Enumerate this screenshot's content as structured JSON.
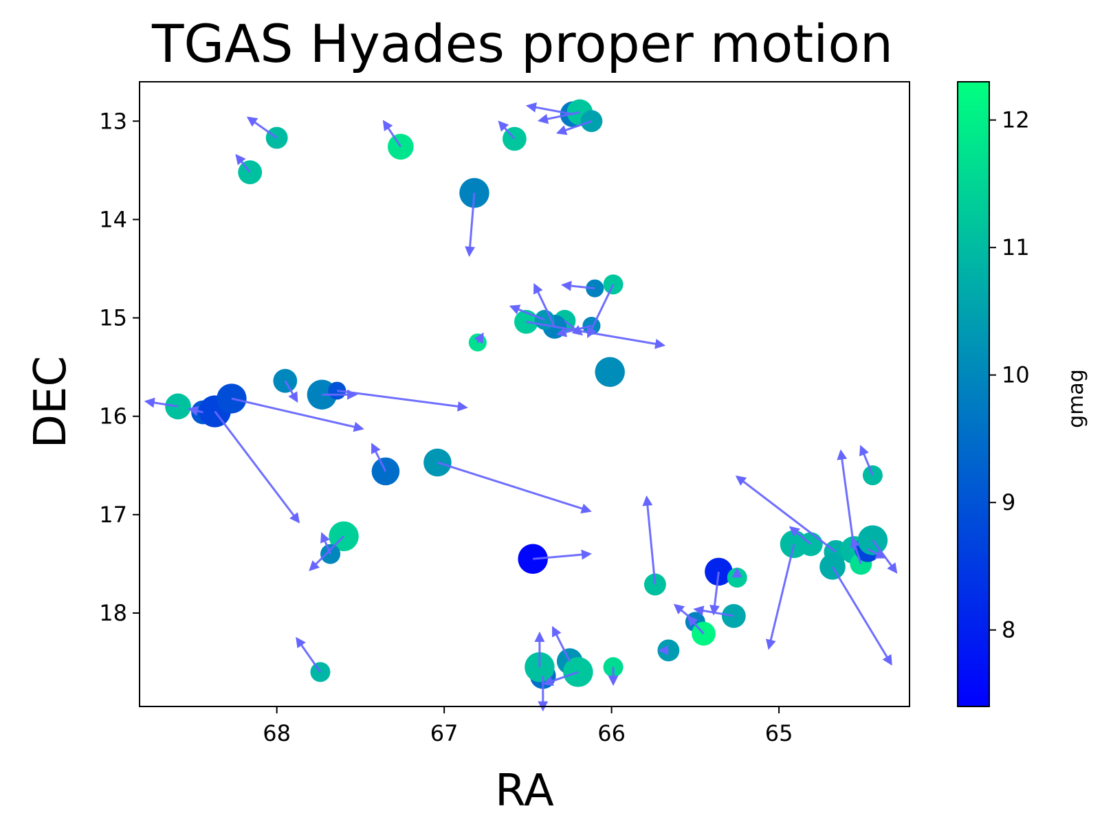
{
  "chart_data": {
    "type": "scatter",
    "title": "TGAS Hyades proper motion",
    "xlabel": "RA",
    "ylabel": "DEC",
    "xlim": [
      68.82,
      64.22
    ],
    "ylim": [
      18.95,
      12.6
    ],
    "x_ticks": [
      68,
      67,
      66,
      65
    ],
    "y_ticks": [
      13,
      14,
      15,
      16,
      17,
      18
    ],
    "grid": false,
    "colorbar": {
      "label": "gmag",
      "range": [
        7.4,
        12.3
      ],
      "ticks": [
        8,
        9,
        10,
        11,
        12
      ],
      "colormap": [
        "#0000ff",
        "#00ff80"
      ]
    },
    "arrow_color": "#6666ff",
    "points": [
      {
        "ra": 68.0,
        "dec": 13.17,
        "gmag": 11.0,
        "pm_dra": 0.17,
        "pm_ddec": -0.12,
        "size": 11
      },
      {
        "ra": 68.16,
        "dec": 13.52,
        "gmag": 11.1,
        "pm_dra": 0.08,
        "pm_ddec": -0.1,
        "size": 12
      },
      {
        "ra": 67.26,
        "dec": 13.26,
        "gmag": 11.8,
        "pm_dra": 0.1,
        "pm_ddec": -0.15,
        "size": 13
      },
      {
        "ra": 66.58,
        "dec": 13.18,
        "gmag": 11.2,
        "pm_dra": 0.09,
        "pm_ddec": -0.1,
        "size": 12
      },
      {
        "ra": 66.23,
        "dec": 12.93,
        "gmag": 9.7,
        "pm_dra": 0.27,
        "pm_ddec": -0.05,
        "size": 13
      },
      {
        "ra": 66.19,
        "dec": 12.91,
        "gmag": 11.2,
        "pm_dra": 0.24,
        "pm_ddec": 0.05,
        "size": 13
      },
      {
        "ra": 66.12,
        "dec": 13.0,
        "gmag": 10.5,
        "pm_dra": 0.2,
        "pm_ddec": 0.07,
        "size": 11
      },
      {
        "ra": 66.82,
        "dec": 13.73,
        "gmag": 9.9,
        "pm_dra": 0.03,
        "pm_ddec": 0.37,
        "size": 15
      },
      {
        "ra": 66.1,
        "dec": 14.7,
        "gmag": 9.9,
        "pm_dra": 0.19,
        "pm_ddec": -0.02,
        "size": 9
      },
      {
        "ra": 65.99,
        "dec": 14.66,
        "gmag": 11.2,
        "pm_dra": 0.15,
        "pm_ddec": 0.31,
        "size": 10
      },
      {
        "ra": 66.51,
        "dec": 15.04,
        "gmag": 11.3,
        "pm_dra": -0.82,
        "pm_ddec": 0.14,
        "size": 12
      },
      {
        "ra": 66.28,
        "dec": 15.03,
        "gmag": 11.1,
        "pm_dra": -0.1,
        "pm_ddec": 0.08,
        "size": 11
      },
      {
        "ra": 66.34,
        "dec": 15.09,
        "gmag": 9.9,
        "pm_dra": 0.12,
        "pm_ddec": -0.25,
        "size": 12
      },
      {
        "ra": 66.12,
        "dec": 15.08,
        "gmag": 10.0,
        "pm_dra": 0.2,
        "pm_ddec": 0.05,
        "size": 9
      },
      {
        "ra": 66.4,
        "dec": 15.02,
        "gmag": 10.3,
        "pm_dra": 0.2,
        "pm_ddec": -0.08,
        "size": 10
      },
      {
        "ra": 66.8,
        "dec": 15.25,
        "gmag": 11.7,
        "pm_dra": -0.03,
        "pm_ddec": -0.05,
        "size": 9
      },
      {
        "ra": 66.01,
        "dec": 15.55,
        "gmag": 10.1,
        "pm_dra": 0.01,
        "pm_ddec": 0.0,
        "size": 15
      },
      {
        "ra": 68.59,
        "dec": 15.9,
        "gmag": 11.1,
        "pm_dra": 0.19,
        "pm_ddec": -0.03,
        "size": 13
      },
      {
        "ra": 68.44,
        "dec": 15.96,
        "gmag": 9.1,
        "pm_dra": 0.08,
        "pm_ddec": -0.02,
        "size": 12
      },
      {
        "ra": 68.37,
        "dec": 15.95,
        "gmag": 8.7,
        "pm_dra": -0.5,
        "pm_ddec": 0.66,
        "size": 16
      },
      {
        "ra": 68.27,
        "dec": 15.82,
        "gmag": 8.9,
        "pm_dra": -0.78,
        "pm_ddec": 0.18,
        "size": 15
      },
      {
        "ra": 67.95,
        "dec": 15.64,
        "gmag": 10.0,
        "pm_dra": -0.07,
        "pm_ddec": 0.12,
        "size": 12
      },
      {
        "ra": 67.73,
        "dec": 15.78,
        "gmag": 9.9,
        "pm_dra": -0.2,
        "pm_ddec": 0.0,
        "size": 15
      },
      {
        "ra": 67.64,
        "dec": 15.74,
        "gmag": 9.0,
        "pm_dra": -0.77,
        "pm_ddec": 0.1,
        "size": 9
      },
      {
        "ra": 67.35,
        "dec": 16.56,
        "gmag": 9.5,
        "pm_dra": 0.08,
        "pm_ddec": -0.16,
        "size": 14
      },
      {
        "ra": 67.04,
        "dec": 16.47,
        "gmag": 10.3,
        "pm_dra": -0.91,
        "pm_ddec": 0.29,
        "size": 14
      },
      {
        "ra": 67.6,
        "dec": 17.22,
        "gmag": 11.4,
        "pm_dra": 0.2,
        "pm_ddec": 0.2,
        "size": 15
      },
      {
        "ra": 67.68,
        "dec": 17.4,
        "gmag": 10.0,
        "pm_dra": 0.05,
        "pm_ddec": -0.12,
        "size": 10
      },
      {
        "ra": 66.47,
        "dec": 17.45,
        "gmag": 7.5,
        "pm_dra": -0.34,
        "pm_ddec": -0.03,
        "size": 15
      },
      {
        "ra": 65.74,
        "dec": 17.71,
        "gmag": 11.1,
        "pm_dra": 0.05,
        "pm_ddec": -0.52,
        "size": 11
      },
      {
        "ra": 65.36,
        "dec": 17.58,
        "gmag": 8.1,
        "pm_dra": 0.03,
        "pm_ddec": 0.25,
        "size": 14
      },
      {
        "ra": 65.25,
        "dec": 17.64,
        "gmag": 11.3,
        "pm_dra": 0.0,
        "pm_ddec": -0.05,
        "size": 10
      },
      {
        "ra": 65.27,
        "dec": 18.03,
        "gmag": 10.6,
        "pm_dra": 0.23,
        "pm_ddec": -0.04,
        "size": 12
      },
      {
        "ra": 65.5,
        "dec": 18.09,
        "gmag": 9.9,
        "pm_dra": 0.12,
        "pm_ddec": -0.1,
        "size": 10
      },
      {
        "ra": 65.45,
        "dec": 18.21,
        "gmag": 12.1,
        "pm_dra": 0.09,
        "pm_ddec": -0.1,
        "size": 12
      },
      {
        "ra": 65.66,
        "dec": 18.38,
        "gmag": 10.4,
        "pm_dra": 0.05,
        "pm_ddec": 0.0,
        "size": 11
      },
      {
        "ra": 67.74,
        "dec": 18.6,
        "gmag": 10.9,
        "pm_dra": 0.14,
        "pm_ddec": -0.2,
        "size": 10
      },
      {
        "ra": 66.41,
        "dec": 18.64,
        "gmag": 9.5,
        "pm_dra": 0.0,
        "pm_ddec": 0.2,
        "size": 13
      },
      {
        "ra": 66.43,
        "dec": 18.55,
        "gmag": 11.1,
        "pm_dra": 0.0,
        "pm_ddec": -0.2,
        "size": 15
      },
      {
        "ra": 66.25,
        "dec": 18.49,
        "gmag": 10.2,
        "pm_dra": 0.1,
        "pm_ddec": -0.2,
        "size": 13
      },
      {
        "ra": 66.2,
        "dec": 18.6,
        "gmag": 11.2,
        "pm_dra": 0.2,
        "pm_ddec": 0.07,
        "size": 15
      },
      {
        "ra": 65.99,
        "dec": 18.55,
        "gmag": 11.6,
        "pm_dra": 0.0,
        "pm_ddec": 0.1,
        "size": 10
      },
      {
        "ra": 64.91,
        "dec": 17.3,
        "gmag": 11.0,
        "pm_dra": 0.15,
        "pm_ddec": 0.62,
        "size": 14
      },
      {
        "ra": 64.81,
        "dec": 17.3,
        "gmag": 11.0,
        "pm_dra": 0.12,
        "pm_ddec": -0.1,
        "size": 12
      },
      {
        "ra": 64.66,
        "dec": 17.38,
        "gmag": 10.8,
        "pm_dra": 0.59,
        "pm_ddec": -0.45,
        "size": 12
      },
      {
        "ra": 64.68,
        "dec": 17.53,
        "gmag": 10.7,
        "pm_dra": -0.35,
        "pm_ddec": 0.58,
        "size": 13
      },
      {
        "ra": 64.55,
        "dec": 17.36,
        "gmag": 11.0,
        "pm_dra": 0.08,
        "pm_ddec": -0.59,
        "size": 14
      },
      {
        "ra": 64.51,
        "dec": 17.5,
        "gmag": 11.7,
        "pm_dra": 0.05,
        "pm_ddec": -0.15,
        "size": 11
      },
      {
        "ra": 64.47,
        "dec": 17.35,
        "gmag": 8.7,
        "pm_dra": -0.1,
        "pm_ddec": 0.05,
        "size": 13
      },
      {
        "ra": 64.44,
        "dec": 17.26,
        "gmag": 10.8,
        "pm_dra": -0.14,
        "pm_ddec": 0.19,
        "size": 15
      },
      {
        "ra": 64.44,
        "dec": 16.6,
        "gmag": 11.0,
        "pm_dra": 0.07,
        "pm_ddec": -0.17,
        "size": 10
      }
    ]
  }
}
